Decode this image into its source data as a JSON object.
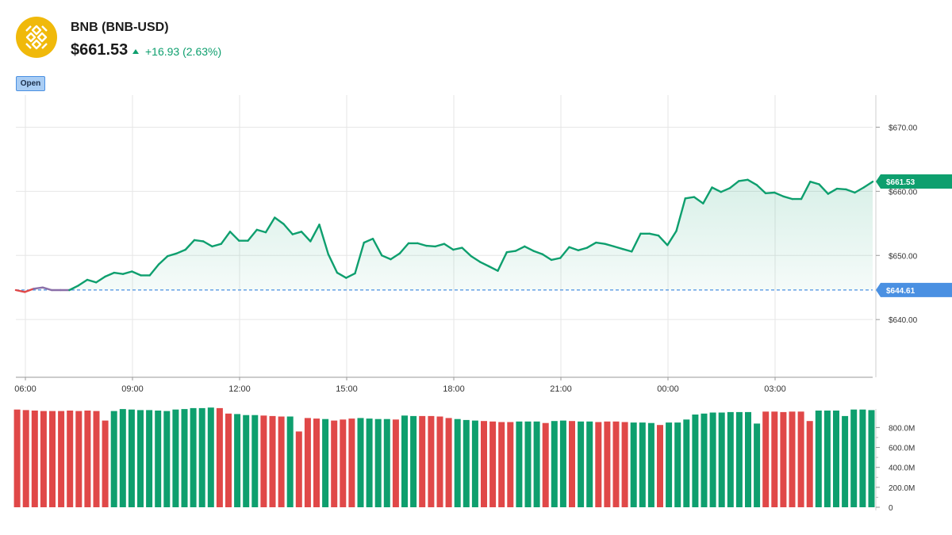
{
  "header": {
    "title": "BNB (BNB-USD)",
    "price": "$661.53",
    "change": "+16.93 (2.63%)",
    "open_badge": "Open"
  },
  "colors": {
    "up": "#0e9f6e",
    "down": "#e04848",
    "prev_close": "#4a90e2",
    "logo": "#f0b90b",
    "grid": "#e6e6e6"
  },
  "icons": {
    "logo": "bnb-logo-icon",
    "change": "triangle-up-icon"
  },
  "chart_data": [
    {
      "type": "line",
      "x_tick_labels": [
        "06:00",
        "09:00",
        "12:00",
        "15:00",
        "18:00",
        "21:00",
        "00:00",
        "03:00"
      ],
      "y_tick_labels": [
        "$670.00",
        "$660.00",
        "$650.00",
        "$640.00"
      ],
      "y_ticks": [
        670,
        660,
        650,
        640
      ],
      "ylim": [
        631,
        675
      ],
      "previous_close": 644.61,
      "previous_close_label": "$644.61",
      "last_price": 661.53,
      "last_price_label": "$661.53",
      "grid": true,
      "series": [
        {
          "values": [
            644.6,
            644.3,
            644.8,
            645.0,
            644.6,
            644.6,
            644.6,
            645.3,
            646.2,
            645.8,
            646.7,
            647.3,
            647.1,
            647.5,
            646.9,
            646.9,
            648.6,
            649.9,
            650.3,
            650.9,
            652.4,
            652.2,
            651.4,
            651.8,
            653.7,
            652.3,
            652.3,
            654.0,
            653.6,
            655.9,
            654.9,
            653.3,
            653.7,
            652.2,
            654.8,
            650.2,
            647.3,
            646.5,
            647.2,
            652.0,
            652.6,
            650.0,
            649.4,
            650.3,
            651.9,
            651.9,
            651.5,
            651.4,
            651.8,
            650.9,
            651.2,
            649.9,
            649.0,
            648.3,
            647.6,
            650.5,
            650.7,
            651.4,
            650.7,
            650.2,
            649.3,
            649.6,
            651.3,
            650.8,
            651.2,
            652.0,
            651.8,
            651.4,
            651.0,
            650.6,
            653.4,
            653.4,
            653.1,
            651.6,
            653.8,
            658.9,
            659.1,
            658.1,
            660.6,
            659.9,
            660.5,
            661.6,
            661.8,
            661.0,
            659.7,
            659.8,
            659.2,
            658.8,
            658.8,
            661.5,
            661.1,
            659.6,
            660.4,
            660.3,
            659.8,
            660.6,
            661.5
          ]
        }
      ]
    },
    {
      "type": "bar",
      "y_tick_labels": [
        "800.0M",
        "600.0M",
        "400.0M",
        "200.0M",
        "0"
      ],
      "y_ticks": [
        800,
        600,
        400,
        200,
        0
      ],
      "ylim": [
        0,
        970
      ],
      "unit": "M",
      "series": [
        {
          "values": [
            980,
            975,
            970,
            965,
            965,
            965,
            970,
            965,
            970,
            965,
            870,
            965,
            985,
            980,
            975,
            975,
            970,
            965,
            980,
            985,
            995,
            995,
            1000,
            995,
            940,
            935,
            925,
            925,
            920,
            915,
            910,
            910,
            760,
            895,
            890,
            885,
            870,
            880,
            890,
            895,
            890,
            885,
            885,
            880,
            920,
            915,
            915,
            915,
            910,
            895,
            885,
            875,
            870,
            865,
            860,
            855,
            855,
            860,
            860,
            860,
            845,
            865,
            870,
            865,
            860,
            860,
            855,
            860,
            860,
            855,
            850,
            850,
            845,
            825,
            850,
            850,
            880,
            930,
            940,
            950,
            950,
            955,
            955,
            955,
            840,
            960,
            960,
            955,
            960,
            960,
            865,
            970,
            970,
            970,
            915,
            980,
            980,
            975
          ],
          "directions": [
            "d",
            "d",
            "d",
            "d",
            "d",
            "d",
            "d",
            "d",
            "d",
            "d",
            "d",
            "u",
            "u",
            "u",
            "u",
            "u",
            "u",
            "u",
            "u",
            "u",
            "u",
            "u",
            "u",
            "d",
            "d",
            "u",
            "u",
            "u",
            "d",
            "d",
            "d",
            "u",
            "d",
            "d",
            "d",
            "u",
            "d",
            "d",
            "d",
            "u",
            "u",
            "u",
            "u",
            "d",
            "u",
            "u",
            "d",
            "d",
            "d",
            "d",
            "u",
            "u",
            "u",
            "d",
            "d",
            "d",
            "d",
            "u",
            "u",
            "u",
            "d",
            "u",
            "u",
            "d",
            "u",
            "u",
            "d",
            "d",
            "d",
            "d",
            "u",
            "u",
            "u",
            "d",
            "u",
            "u",
            "u",
            "u",
            "u",
            "u",
            "u",
            "u",
            "u",
            "u",
            "u",
            "d",
            "d",
            "d",
            "d",
            "d",
            "d",
            "u",
            "u",
            "u",
            "u",
            "u",
            "u",
            "u"
          ]
        }
      ]
    }
  ]
}
